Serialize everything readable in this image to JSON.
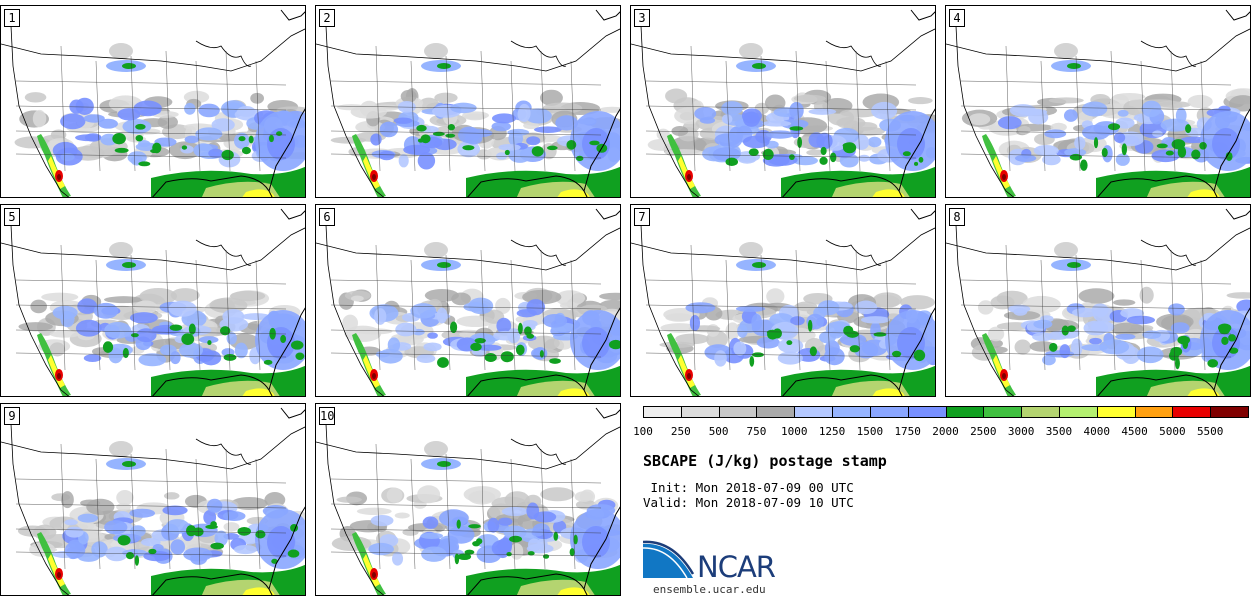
{
  "panels": [
    {
      "label": "1"
    },
    {
      "label": "2"
    },
    {
      "label": "3"
    },
    {
      "label": "4"
    },
    {
      "label": "5"
    },
    {
      "label": "6"
    },
    {
      "label": "7"
    },
    {
      "label": "8"
    },
    {
      "label": "9"
    },
    {
      "label": "10"
    }
  ],
  "colorbar": {
    "colors": [
      "#eeeeee",
      "#dcdcdc",
      "#c8c8c8",
      "#aaaaaa",
      "#b4c8ff",
      "#96b4ff",
      "#8aa6ff",
      "#7890ff",
      "#10a020",
      "#40c040",
      "#b4d470",
      "#b4f070",
      "#ffff30",
      "#ffa010",
      "#e80000",
      "#800000"
    ],
    "ticks": [
      "100",
      "250",
      "500",
      "750",
      "1000",
      "1250",
      "1500",
      "1750",
      "2000",
      "2500",
      "3000",
      "3500",
      "4000",
      "4500",
      "5000",
      "5500"
    ]
  },
  "title": "SBCAPE (J/kg) postage stamp",
  "init_line": " Init: Mon 2018-07-09 00 UTC",
  "valid_line": "Valid: Mon 2018-07-09 10 UTC",
  "logo_text": "NCAR",
  "url": "ensemble.ucar.edu"
}
